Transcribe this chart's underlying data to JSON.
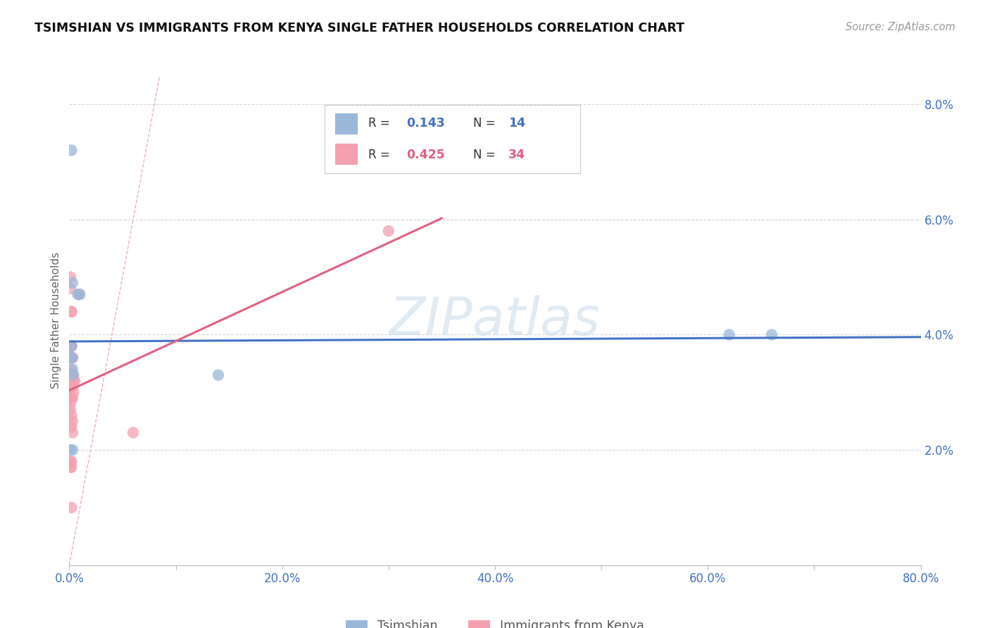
{
  "title": "TSIMSHIAN VS IMMIGRANTS FROM KENYA SINGLE FATHER HOUSEHOLDS CORRELATION CHART",
  "source": "Source: ZipAtlas.com",
  "ylabel": "Single Father Households",
  "xlim": [
    0.0,
    0.8
  ],
  "ylim": [
    0.0,
    0.085
  ],
  "y_ticks": [
    0.0,
    0.02,
    0.04,
    0.06,
    0.08
  ],
  "x_ticks": [
    0.0,
    0.1,
    0.2,
    0.3,
    0.4,
    0.5,
    0.6,
    0.7,
    0.8
  ],
  "tsimshian_color": "#9ab8d8",
  "kenya_color": "#f4a0b0",
  "tsimshian_line_color": "#4472c4",
  "kenya_line_color": "#e06080",
  "diag_line_color": "#e0a0a8",
  "watermark_color": "#ccdcec",
  "tsimshian_points": [
    [
      0.002,
      0.072
    ],
    [
      0.008,
      0.047
    ],
    [
      0.01,
      0.047
    ],
    [
      0.003,
      0.049
    ],
    [
      0.002,
      0.038
    ],
    [
      0.002,
      0.036
    ],
    [
      0.003,
      0.034
    ],
    [
      0.004,
      0.033
    ],
    [
      0.001,
      0.02
    ],
    [
      0.003,
      0.02
    ],
    [
      0.14,
      0.033
    ],
    [
      0.62,
      0.04
    ],
    [
      0.66,
      0.04
    ],
    [
      0.002,
      0.036
    ]
  ],
  "kenya_points": [
    [
      0.001,
      0.05
    ],
    [
      0.001,
      0.048
    ],
    [
      0.009,
      0.047
    ],
    [
      0.002,
      0.044
    ],
    [
      0.002,
      0.044
    ],
    [
      0.002,
      0.038
    ],
    [
      0.002,
      0.038
    ],
    [
      0.003,
      0.036
    ],
    [
      0.003,
      0.036
    ],
    [
      0.001,
      0.034
    ],
    [
      0.003,
      0.033
    ],
    [
      0.003,
      0.033
    ],
    [
      0.004,
      0.032
    ],
    [
      0.005,
      0.032
    ],
    [
      0.001,
      0.031
    ],
    [
      0.002,
      0.031
    ],
    [
      0.003,
      0.031
    ],
    [
      0.004,
      0.03
    ],
    [
      0.001,
      0.029
    ],
    [
      0.002,
      0.029
    ],
    [
      0.003,
      0.029
    ],
    [
      0.001,
      0.028
    ],
    [
      0.001,
      0.027
    ],
    [
      0.002,
      0.026
    ],
    [
      0.003,
      0.025
    ],
    [
      0.002,
      0.024
    ],
    [
      0.003,
      0.023
    ],
    [
      0.06,
      0.023
    ],
    [
      0.001,
      0.018
    ],
    [
      0.002,
      0.018
    ],
    [
      0.001,
      0.017
    ],
    [
      0.002,
      0.017
    ],
    [
      0.002,
      0.01
    ],
    [
      0.3,
      0.058
    ]
  ]
}
